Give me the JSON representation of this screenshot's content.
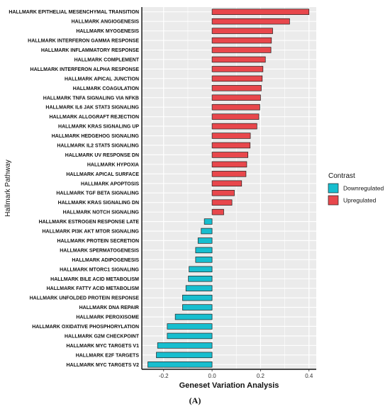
{
  "chart_data": {
    "type": "bar",
    "orientation": "horizontal",
    "xlabel": "Geneset Variation Analysis",
    "ylabel": "Hallmark Pathway",
    "xlim": [
      -0.29,
      0.43
    ],
    "xticks": [
      -0.2,
      0.0,
      0.2,
      0.4
    ],
    "xtick_labels": [
      "-0.2",
      "0.0",
      "0.2",
      "0.4"
    ],
    "grid": true,
    "legend": {
      "title": "Contrast",
      "position": "right",
      "entries": [
        {
          "name": "Downregulated",
          "color": "#17becf"
        },
        {
          "name": "Upregulated",
          "color": "#e8474c"
        }
      ]
    },
    "panel_label": "(A)",
    "categories": [
      "HALLMARK EPITHELIAL MESENCHYMAL TRANSITION",
      "HALLMARK ANGIOGENESIS",
      "HALLMARK MYOGENESIS",
      "HALLMARK INTERFERON GAMMA RESPONSE",
      "HALLMARK INFLAMMATORY RESPONSE",
      "HALLMARK COMPLEMENT",
      "HALLMARK INTERFERON ALPHA RESPONSE",
      "HALLMARK APICAL JUNCTION",
      "HALLMARK COAGULATION",
      "HALLMARK TNFA SIGNALING VIA NFKB",
      "HALLMARK IL6 JAK STAT3 SIGNALING",
      "HALLMARK ALLOGRAFT REJECTION",
      "HALLMARK KRAS SIGNALING UP",
      "HALLMARK HEDGEHOG SIGNALING",
      "HALLMARK IL2 STAT5 SIGNALING",
      "HALLMARK UV RESPONSE DN",
      "HALLMARK HYPOXIA",
      "HALLMARK APICAL SURFACE",
      "HALLMARK APOPTOSIS",
      "HALLMARK TGF BETA SIGNALING",
      "HALLMARK KRAS SIGNALING DN",
      "HALLMARK NOTCH SIGNALING",
      "HALLMARK ESTROGEN RESPONSE LATE",
      "HALLMARK PI3K AKT MTOR SIGNALING",
      "HALLMARK PROTEIN SECRETION",
      "HALLMARK SPERMATOGENESIS",
      "HALLMARK ADIPOGENESIS",
      "HALLMARK MTORC1 SIGNALING",
      "HALLMARK BILE ACID METABOLISM",
      "HALLMARK FATTY ACID METABOLISM",
      "HALLMARK UNFOLDED PROTEIN RESPONSE",
      "HALLMARK DNA REPAIR",
      "HALLMARK PEROXISOME",
      "HALLMARK OXIDATIVE PHOSPHORYLATION",
      "HALLMARK G2M CHECKPOINT",
      "HALLMARK MYC TARGETS V1",
      "HALLMARK E2F TARGETS",
      "HALLMARK MYC TARGETS V2"
    ],
    "values": [
      0.4,
      0.32,
      0.25,
      0.245,
      0.243,
      0.22,
      0.21,
      0.207,
      0.203,
      0.2,
      0.197,
      0.193,
      0.185,
      0.158,
      0.157,
      0.148,
      0.143,
      0.14,
      0.122,
      0.092,
      0.082,
      0.048,
      -0.032,
      -0.045,
      -0.058,
      -0.068,
      -0.068,
      -0.095,
      -0.098,
      -0.108,
      -0.122,
      -0.122,
      -0.152,
      -0.185,
      -0.185,
      -0.225,
      -0.23,
      -0.265
    ],
    "series_assignment": [
      "Upregulated",
      "Upregulated",
      "Upregulated",
      "Upregulated",
      "Upregulated",
      "Upregulated",
      "Upregulated",
      "Upregulated",
      "Upregulated",
      "Upregulated",
      "Upregulated",
      "Upregulated",
      "Upregulated",
      "Upregulated",
      "Upregulated",
      "Upregulated",
      "Upregulated",
      "Upregulated",
      "Upregulated",
      "Upregulated",
      "Upregulated",
      "Upregulated",
      "Downregulated",
      "Downregulated",
      "Downregulated",
      "Downregulated",
      "Downregulated",
      "Downregulated",
      "Downregulated",
      "Downregulated",
      "Downregulated",
      "Downregulated",
      "Downregulated",
      "Downregulated",
      "Downregulated",
      "Downregulated",
      "Downregulated",
      "Downregulated"
    ]
  }
}
